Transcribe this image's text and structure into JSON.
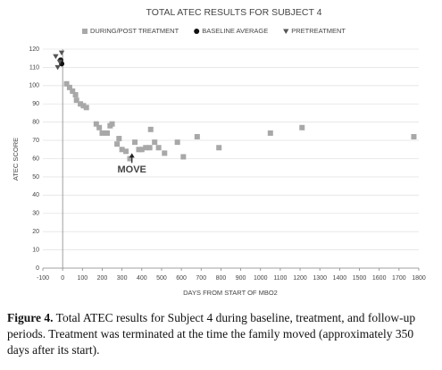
{
  "chart_data": {
    "type": "scatter",
    "title": "TOTAL ATEC RESULTS FOR SUBJECT 4",
    "x_label": "DAYS FROM START OF MBO2",
    "y_label": "ATEC SCORE",
    "xlim": [
      -100,
      1800
    ],
    "xticks": [
      -100,
      0,
      100,
      200,
      300,
      400,
      500,
      600,
      700,
      800,
      900,
      1000,
      1100,
      1200,
      1300,
      1400,
      1500,
      1600,
      1700,
      1800
    ],
    "ylim": [
      0,
      120
    ],
    "yticks": [
      0,
      10,
      20,
      30,
      40,
      50,
      60,
      70,
      80,
      90,
      100,
      110,
      120
    ],
    "grid": true,
    "series": [
      {
        "name": "DURING/POST TREATMENT",
        "color": "#a8a8a8",
        "marker": "square",
        "x": [
          20,
          35,
          50,
          65,
          70,
          90,
          105,
          120,
          170,
          185,
          200,
          225,
          240,
          250,
          275,
          285,
          300,
          320,
          340,
          365,
          385,
          400,
          420,
          440,
          445,
          465,
          485,
          515,
          580,
          610,
          680,
          790,
          1050,
          1210,
          1775
        ],
        "values": [
          101,
          99,
          97,
          95,
          92,
          90,
          89,
          88,
          79,
          77,
          74,
          74,
          78,
          79,
          68,
          71,
          65,
          64,
          60,
          69,
          65,
          65,
          66,
          66,
          76,
          69,
          66,
          63,
          69,
          61,
          72,
          66,
          74,
          77,
          72
        ]
      },
      {
        "name": "BASELINE AVERAGE",
        "color": "#111111",
        "marker": "circle",
        "x": [
          -10,
          -5
        ],
        "values": [
          114,
          112
        ]
      },
      {
        "name": "PRETREATMENT",
        "color": "#555555",
        "marker": "triangle",
        "x": [
          -35,
          -25,
          -15,
          -5
        ],
        "values": [
          116,
          110,
          113,
          118
        ]
      }
    ],
    "annotations": [
      {
        "text": "MOVE",
        "x": 350,
        "y": 64
      }
    ]
  },
  "caption": {
    "label": "Figure 4.",
    "text": "Total ATEC results for Subject 4 during baseline, treatment, and follow-up periods. Treatment was terminated at the time the family moved (approximately 350 days after its start)."
  }
}
